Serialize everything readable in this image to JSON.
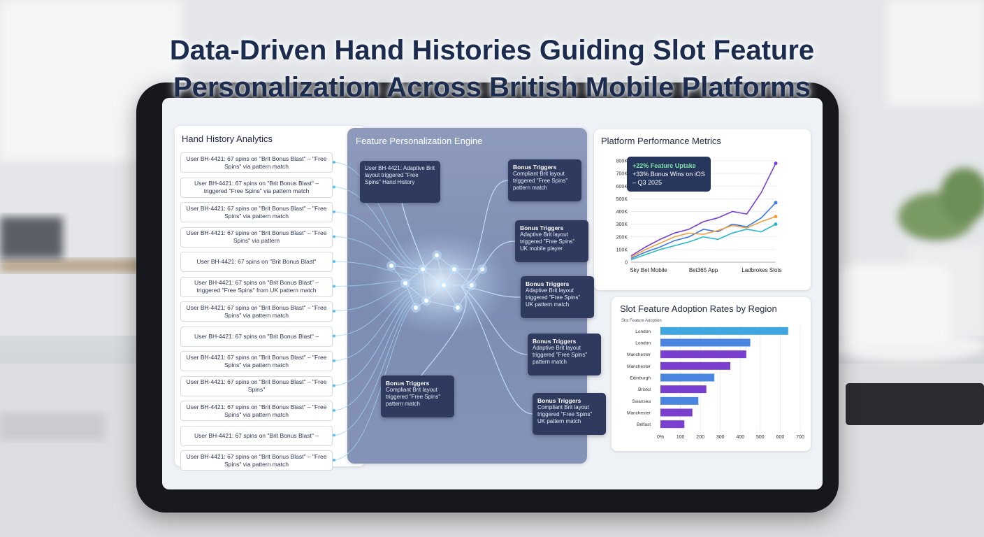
{
  "title": [
    "Data-Driven Hand Histories Guiding Slot Feature",
    "Personalization Across British Mobile Platforms"
  ],
  "hand_history": {
    "title": "Hand History Analytics",
    "items": [
      "User BH-4421: 67 spins on \"Brit Bonus Blast\" – \"Free Spins\" via pattern match",
      "User BH-4421: 67 spins on \"Brit Bonus Blast\" – triggered \"Free Spins\" via pattern match",
      "User BH-4421: 67 spins on \"Brit Bonus Blast\" – \"Free Spins\" via pattern match",
      "User BH-4421: 67 spins on \"Brit Bonus Blast\" – \"Free Spins\" via pattern",
      "User BH-4421: 67 spins on \"Brit Bonus Blast\"",
      "User BH-4421: 67 spins on \"Brit Bonus Blast\" – triggered \"Free Spins\" from UK pattern match",
      "User BH-4421: 67 spins on \"Brit Bonus Blast\" – \"Free Spins\" via pattern match",
      "User BH-4421: 67 spins on \"Brit Bonus Blast\" –",
      "User BH-4421: 67 spins on \"Brit Bonus Blast\" – \"Free Spins\" via pattern match",
      "User BH-4421: 67 spins on \"Brit Bonus Blast\" – \"Free Spins\"",
      "User BH-4421: 67 spins on \"Brit Bonus Blast\" – \"Free Spins\" via pattern match",
      "User BH-4421: 67 spins on \"Brit Bonus Blast\" –",
      "User BH-4421: 67 spins on \"Brit Bonus Blast\" – \"Free Spins\" via pattern match"
    ]
  },
  "engine": {
    "title": "Feature Personalization Engine",
    "input": "User BH-4421: Adaptive Brit layout triggered \"Free Spins\" Hand History",
    "outputs": [
      {
        "title": "Bonus Triggers",
        "text": "Compliant Brit layout triggered \"Free Spins\" pattern match"
      },
      {
        "title": "Bonus Triggers",
        "text": "Adaptive Brit layout triggered \"Free Spins\" UK mobile player"
      },
      {
        "title": "Bonus Triggers",
        "text": "Adaptive Brit layout triggered \"Free Spins\" UK pattern match"
      },
      {
        "title": "Bonus Triggers",
        "text": "Adaptive Brit layout triggered \"Free Spins\" pattern match"
      },
      {
        "title": "Bonus Triggers",
        "text": "Compliant Brit layout triggered \"Free Spins\" pattern match"
      },
      {
        "title": "Bonus Triggers",
        "text": "Compliant Brit layout triggered \"Free Spins\" UK pattern match"
      }
    ]
  },
  "chart_data": [
    {
      "type": "line",
      "title": "Platform Performance Metrics",
      "annotation": [
        "+22% Feature Uptake",
        "+33% Bonus Wins on iOS – Q3 2025"
      ],
      "categories": [
        "Sky Bet Mobile",
        null,
        null,
        null,
        null,
        "Bet365 App",
        null,
        null,
        null,
        null,
        "Ladbrokes Slots"
      ],
      "series": [
        {
          "color": "#7b3fd0",
          "values": [
            50000,
            120000,
            180000,
            230000,
            260000,
            320000,
            350000,
            400000,
            380000,
            550000,
            780000
          ]
        },
        {
          "color": "#3d7be0",
          "values": [
            30000,
            80000,
            120000,
            170000,
            200000,
            260000,
            240000,
            300000,
            280000,
            350000,
            470000
          ]
        },
        {
          "color": "#2bb8c9",
          "values": [
            20000,
            60000,
            100000,
            130000,
            160000,
            200000,
            180000,
            230000,
            260000,
            240000,
            300000
          ]
        },
        {
          "color": "#f0a040",
          "values": [
            40000,
            100000,
            150000,
            200000,
            230000,
            220000,
            250000,
            290000,
            270000,
            320000,
            360000
          ]
        }
      ],
      "ylim": [
        0,
        800000
      ],
      "yticks": [
        0,
        {
          "value": 100000,
          "label": "100K"
        },
        {
          "value": 200000,
          "label": "200K"
        },
        {
          "value": 300000,
          "label": "300K"
        },
        {
          "value": 400000,
          "label": "400K"
        },
        {
          "value": 500000,
          "label": "500K"
        },
        {
          "value": 600000,
          "label": "600K"
        },
        {
          "value": 700000,
          "label": "700K"
        },
        {
          "value": 800000,
          "label": "800K"
        }
      ],
      "grid": true
    },
    {
      "type": "bar",
      "orientation": "horizontal",
      "title": "Slot Feature Adoption Rates by Region",
      "subtitle": "Slot Feature Adoption",
      "categories": [
        "London",
        "London",
        "Manchester",
        "Manchester",
        "Edinburgh",
        "Bristol",
        "Swansea",
        "Manchester",
        "Belfast"
      ],
      "values": [
        640,
        450,
        430,
        350,
        270,
        230,
        190,
        160,
        120
      ],
      "colors": [
        "#3fa6e0",
        "#4a86e0",
        "#7b3fd0",
        "#7b3fd0",
        "#4a86e0",
        "#7b3fd0",
        "#4a86e0",
        "#7b3fd0",
        "#7b3fd0"
      ],
      "xlim": [
        0,
        700
      ],
      "xticks": [
        {
          "value": 0,
          "label": "0%"
        },
        100,
        200,
        300,
        400,
        500,
        600,
        700
      ],
      "grid": true
    }
  ]
}
